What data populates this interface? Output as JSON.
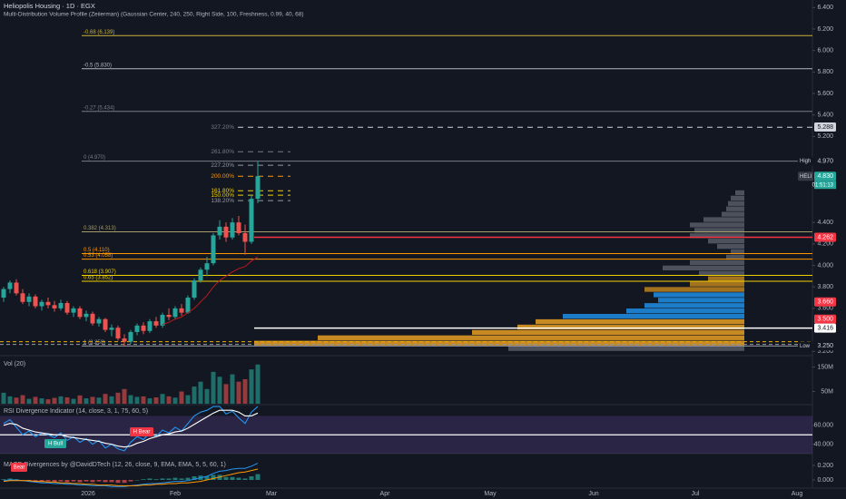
{
  "header": {
    "title": "Heliopolis Housing · 1D · EGX",
    "subtitle": "Multi-Distribution Volume Profile (Zeiierman) (Gaussian Center, 240, 250, Right Side, 100, Freshness, 0.99, 40, 68)"
  },
  "chart_data": [
    {
      "type": "candlestick",
      "ylim": [
        3.16,
        6.47
      ],
      "yticks": [
        {
          "value": 6.4,
          "label": "6.400"
        },
        {
          "value": 6.2,
          "label": "6.200"
        },
        {
          "value": 6.0,
          "label": "6.000"
        },
        {
          "value": 5.8,
          "label": "5.800"
        },
        {
          "value": 5.6,
          "label": "5.600"
        },
        {
          "value": 5.4,
          "label": "5.400"
        },
        {
          "value": 5.2,
          "label": "5.200"
        },
        {
          "value": 4.4,
          "label": "4.400"
        },
        {
          "value": 4.2,
          "label": "4.200"
        },
        {
          "value": 4.0,
          "label": "4.000"
        },
        {
          "value": 3.8,
          "label": "3.800"
        },
        {
          "value": 3.6,
          "label": "3.600"
        },
        {
          "value": 3.2,
          "label": "3.200"
        }
      ],
      "x_labels": [
        "2026",
        "Feb",
        "Mar",
        "Apr",
        "May",
        "Jun",
        "Jul",
        "Aug"
      ],
      "up_color": "#26a69a",
      "down_color": "#ef5350",
      "open": [
        3.7,
        3.78,
        3.84,
        3.74,
        3.66,
        3.71,
        3.62,
        3.66,
        3.63,
        3.6,
        3.65,
        3.56,
        3.6,
        3.52,
        3.55,
        3.46,
        3.5,
        3.4,
        3.42,
        3.32,
        3.29,
        3.38,
        3.44,
        3.39,
        3.48,
        3.44,
        3.54,
        3.52,
        3.6,
        3.56,
        3.7,
        3.86,
        3.96,
        4.02,
        4.28,
        4.36,
        4.26,
        4.4,
        4.3,
        4.22,
        4.62
      ],
      "high": [
        3.8,
        3.86,
        3.87,
        3.78,
        3.74,
        3.73,
        3.68,
        3.7,
        3.67,
        3.68,
        3.67,
        3.62,
        3.62,
        3.58,
        3.57,
        3.52,
        3.51,
        3.45,
        3.44,
        3.36,
        3.4,
        3.46,
        3.47,
        3.5,
        3.52,
        3.56,
        3.6,
        3.62,
        3.64,
        3.72,
        3.88,
        3.98,
        4.08,
        4.3,
        4.42,
        4.4,
        4.44,
        4.46,
        4.38,
        4.66,
        4.97
      ],
      "low": [
        3.66,
        3.74,
        3.72,
        3.64,
        3.62,
        3.6,
        3.58,
        3.6,
        3.57,
        3.58,
        3.54,
        3.52,
        3.5,
        3.48,
        3.44,
        3.43,
        3.38,
        3.34,
        3.3,
        3.25,
        3.27,
        3.35,
        3.36,
        3.37,
        3.42,
        3.42,
        3.49,
        3.5,
        3.53,
        3.55,
        3.68,
        3.84,
        3.9,
        4.0,
        4.24,
        4.22,
        4.24,
        4.28,
        4.1,
        4.2,
        4.58
      ],
      "close": [
        3.78,
        3.84,
        3.74,
        3.66,
        3.71,
        3.62,
        3.66,
        3.63,
        3.6,
        3.65,
        3.56,
        3.6,
        3.52,
        3.55,
        3.46,
        3.5,
        3.4,
        3.42,
        3.32,
        3.29,
        3.38,
        3.44,
        3.39,
        3.48,
        3.44,
        3.54,
        3.52,
        3.6,
        3.56,
        3.7,
        3.86,
        3.96,
        4.02,
        4.28,
        4.36,
        4.26,
        4.4,
        4.3,
        4.22,
        4.62,
        4.83
      ],
      "ma": {
        "color": "#b71c1c",
        "values": [
          null,
          null,
          null,
          null,
          null,
          null,
          null,
          null,
          null,
          null,
          null,
          null,
          null,
          null,
          null,
          null,
          null,
          null,
          null,
          null,
          null,
          null,
          null,
          null,
          null,
          3.45,
          3.47,
          3.5,
          3.52,
          3.56,
          3.6,
          3.66,
          3.72,
          3.8,
          3.86,
          3.9,
          3.94,
          3.97,
          3.99,
          4.04,
          4.08
        ]
      },
      "levels": [
        {
          "label": "-0.68 (6.139)",
          "value": 6.139,
          "color": "#c9b33a"
        },
        {
          "label": "-0.5 (5.830)",
          "value": 5.83,
          "color": "#b2b5be"
        },
        {
          "label": "-0.27 (5.434)",
          "value": 5.434,
          "color": "#787b86"
        },
        {
          "label": "0 (4.970)",
          "value": 4.97,
          "color": "#787b86"
        },
        {
          "label": "0.382 (4.313)",
          "value": 4.313,
          "color": "#a59c6a"
        },
        {
          "label": "0.5 (4.110)",
          "value": 4.11,
          "color": "#ff9800"
        },
        {
          "label": "0.53 (4.058)",
          "value": 4.058,
          "color": "#ff9800"
        },
        {
          "label": "0.618 (3.907)",
          "value": 3.907,
          "color": "#f0d000"
        },
        {
          "label": "0.65 (3.852)",
          "value": 3.852,
          "color": "#f0d000"
        },
        {
          "label": "1 (3.250)",
          "value": 3.25,
          "color": "#9598a1"
        }
      ],
      "extensions": [
        {
          "label": "327.20%",
          "value": 5.286,
          "color": "#787b86"
        },
        {
          "label": "261.80%",
          "value": 5.058,
          "color": "#787b86"
        },
        {
          "label": "227.20%",
          "value": 4.932,
          "color": "#9598a1"
        },
        {
          "label": "200.00%",
          "value": 4.83,
          "color": "#ff9800"
        },
        {
          "label": "161.80%",
          "value": 4.695,
          "color": "#f0d000"
        },
        {
          "label": "150.00%",
          "value": 4.653,
          "color": "#f0d000"
        },
        {
          "label": "138.20%",
          "value": 4.603,
          "color": "#9598a1"
        }
      ],
      "dashed_levels": [
        {
          "value": 3.29,
          "color": "#f0b000"
        },
        {
          "value": 3.265,
          "color": "#9598a1"
        }
      ],
      "markers": [
        {
          "label": "5.288",
          "value": 5.288,
          "color": "#d1d4dc",
          "text_color": "#131722"
        },
        {
          "tag": "High",
          "label": "4.970",
          "value": 4.97,
          "color": "#131722",
          "text_color": "#d1d4dc"
        },
        {
          "tag": "HELI",
          "label": "4.830",
          "value": 4.83,
          "color": "#26a69a",
          "text_color": "#ffffff",
          "countdown": "01:51:13"
        },
        {
          "label": "4.262",
          "value": 4.262,
          "color": "#f23645",
          "text_color": "#ffffff",
          "line": true
        },
        {
          "label": "3.660",
          "value": 3.66,
          "color": "#f23645",
          "text_color": "#ffffff"
        },
        {
          "label": "3.500",
          "value": 3.5,
          "color": "#f23645",
          "text_color": "#ffffff"
        },
        {
          "label": "3.416",
          "value": 3.416,
          "color": "#ffffff",
          "text_color": "#131722",
          "line": true
        },
        {
          "tag": "Low",
          "label": "3.250",
          "value": 3.25,
          "color": "#131722",
          "text_color": "#d1d4dc"
        }
      ],
      "volume_profile": {
        "prices": [
          3.225,
          3.275,
          3.325,
          3.375,
          3.425,
          3.475,
          3.525,
          3.575,
          3.625,
          3.675,
          3.725,
          3.775,
          3.825,
          3.875,
          3.925,
          3.975,
          4.025,
          4.075,
          4.125,
          4.175,
          4.225,
          4.275,
          4.325,
          4.375,
          4.425,
          4.475,
          4.525,
          4.575,
          4.625,
          4.675
        ],
        "volumes": [
          260,
          540,
          470,
          300,
          250,
          230,
          200,
          130,
          110,
          95,
          100,
          110,
          60,
          40,
          50,
          90,
          60,
          20,
          15,
          30,
          40,
          60,
          55,
          60,
          45,
          25,
          20,
          18,
          15,
          10
        ],
        "colors": [
          "#5d606b",
          "#f5a623",
          "#f5a623",
          "#f5a623",
          "#f5a623",
          "#f5a623",
          "#2196f3",
          "#2196f3",
          "#2196f3",
          "#2196f3",
          "#2196f3",
          "#c88a1e",
          "#c88a1e",
          "#c88a1e",
          "#5d606b",
          "#5d606b",
          "#5d606b",
          "#5d606b",
          "#5d606b",
          "#5d606b",
          "#5d606b",
          "#5d606b",
          "#5d606b",
          "#5d606b",
          "#5d606b",
          "#5d606b",
          "#5d606b",
          "#5d606b",
          "#5d606b",
          "#5d606b"
        ]
      }
    },
    {
      "type": "volume",
      "title": "Vol (20)",
      "ylim": [
        0,
        185
      ],
      "yticks": [
        {
          "value": 150,
          "label": "150M"
        },
        {
          "value": 50,
          "label": "50M"
        }
      ],
      "values": [
        45,
        30,
        25,
        35,
        20,
        28,
        22,
        18,
        24,
        30,
        26,
        20,
        34,
        22,
        28,
        25,
        40,
        30,
        45,
        60,
        35,
        28,
        30,
        22,
        26,
        40,
        30,
        25,
        50,
        35,
        70,
        90,
        60,
        130,
        110,
        80,
        120,
        90,
        100,
        140,
        160
      ]
    },
    {
      "type": "rsi",
      "title": "RSI Divergence Indicator (14, close, 3, 1, 75, 60, 5)",
      "ylim": [
        30,
        81
      ],
      "yticks": [
        {
          "value": 60,
          "label": "60.000"
        },
        {
          "value": 40,
          "label": "40.000"
        }
      ],
      "band": [
        30,
        70
      ],
      "midline": 50,
      "series": [
        {
          "color": "#2196f3",
          "values": [
            62,
            66,
            58,
            50,
            54,
            48,
            52,
            50,
            47,
            52,
            44,
            48,
            42,
            46,
            40,
            44,
            36,
            40,
            35,
            33,
            42,
            48,
            45,
            52,
            48,
            55,
            52,
            58,
            54,
            62,
            70,
            74,
            76,
            80,
            80,
            72,
            75,
            68,
            62,
            74,
            80
          ]
        },
        {
          "color": "#ffffff",
          "values": [
            60,
            62,
            61,
            57,
            55,
            53,
            52,
            51,
            50,
            50,
            48,
            47,
            46,
            45,
            44,
            43,
            41,
            40,
            38,
            37,
            38,
            41,
            43,
            46,
            48,
            50,
            51,
            53,
            54,
            57,
            61,
            65,
            69,
            73,
            76,
            76,
            76,
            74,
            70,
            70,
            73
          ]
        }
      ],
      "annotations": [
        {
          "label": "H Bull",
          "color": "#26a69a"
        },
        {
          "label": "H Bear",
          "color": "#f23645"
        }
      ]
    },
    {
      "type": "macd",
      "title": "MACD Divergences by @DavidDTech (12, 26, close, 9, EMA, EMA, 5, 5, 60, 1)",
      "ylim": [
        -0.1,
        0.3
      ],
      "yticks": [
        {
          "value": 0.2,
          "label": "0.200"
        },
        {
          "value": 0,
          "label": "0.000"
        }
      ],
      "histogram": [
        0.01,
        0.02,
        0.01,
        -0.01,
        -0.02,
        -0.03,
        -0.03,
        -0.02,
        -0.03,
        -0.02,
        -0.03,
        -0.02,
        -0.03,
        -0.02,
        -0.03,
        -0.02,
        -0.03,
        -0.03,
        -0.04,
        -0.04,
        -0.02,
        0.0,
        0.01,
        0.02,
        0.01,
        0.02,
        0.02,
        0.03,
        0.02,
        0.03,
        0.05,
        0.06,
        0.05,
        0.07,
        0.07,
        0.04,
        0.04,
        0.03,
        0.02,
        0.05,
        0.08
      ],
      "series": [
        {
          "color": "#2196f3",
          "values": [
            -0.01,
            0.0,
            0.0,
            -0.01,
            -0.02,
            -0.03,
            -0.04,
            -0.04,
            -0.05,
            -0.05,
            -0.06,
            -0.06,
            -0.07,
            -0.07,
            -0.08,
            -0.08,
            -0.08,
            -0.09,
            -0.09,
            -0.09,
            -0.08,
            -0.07,
            -0.06,
            -0.05,
            -0.05,
            -0.04,
            -0.03,
            -0.02,
            -0.02,
            -0.01,
            0.01,
            0.03,
            0.05,
            0.09,
            0.12,
            0.13,
            0.15,
            0.16,
            0.16,
            0.19,
            0.23
          ]
        },
        {
          "color": "#ff9800",
          "values": [
            -0.02,
            -0.01,
            -0.01,
            -0.01,
            -0.01,
            -0.02,
            -0.02,
            -0.03,
            -0.03,
            -0.04,
            -0.04,
            -0.05,
            -0.05,
            -0.06,
            -0.06,
            -0.07,
            -0.07,
            -0.07,
            -0.08,
            -0.08,
            -0.08,
            -0.08,
            -0.07,
            -0.07,
            -0.06,
            -0.06,
            -0.05,
            -0.05,
            -0.04,
            -0.04,
            -0.03,
            -0.02,
            0.0,
            0.02,
            0.04,
            0.06,
            0.08,
            0.1,
            0.11,
            0.13,
            0.15
          ]
        }
      ],
      "annotations": [
        {
          "label": "Bear",
          "color": "#f23645"
        }
      ]
    }
  ]
}
